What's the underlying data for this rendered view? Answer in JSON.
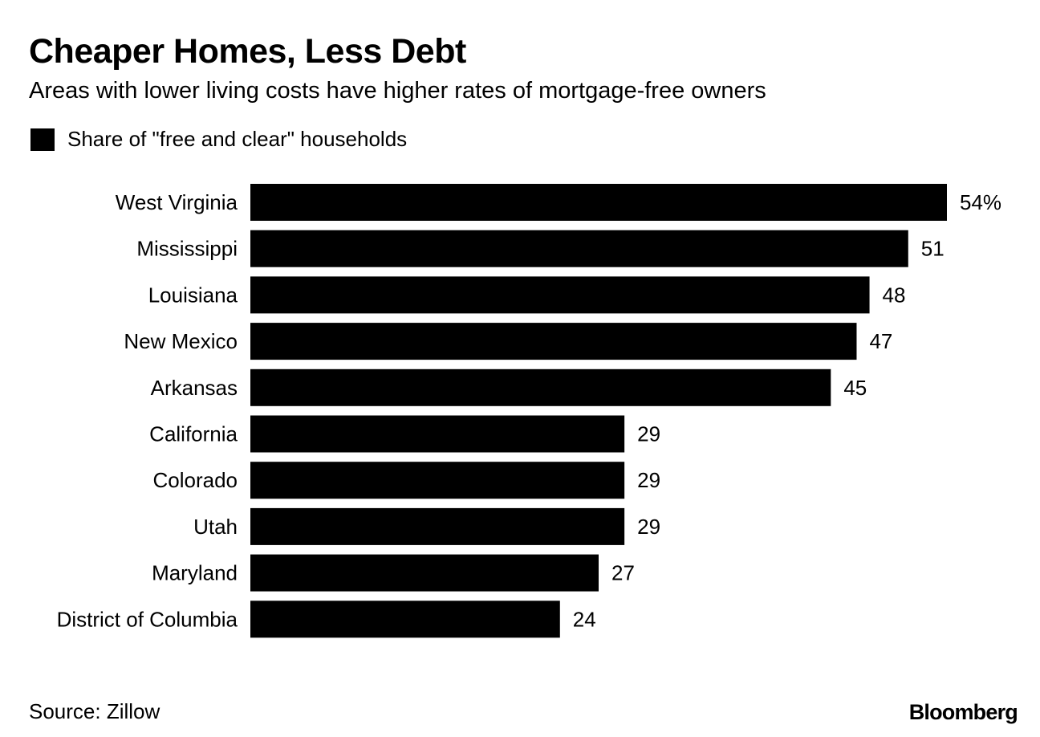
{
  "header": {
    "title": "Cheaper Homes, Less Debt",
    "subtitle": "Areas with lower living costs have higher rates of mortgage-free owners"
  },
  "legend": {
    "label": "Share of \"free and clear\" households"
  },
  "footer": {
    "source": "Source: Zillow",
    "brand": "Bloomberg"
  },
  "chart_data": {
    "type": "bar",
    "orientation": "horizontal",
    "categories": [
      "West Virginia",
      "Mississippi",
      "Louisiana",
      "New Mexico",
      "Arkansas",
      "California",
      "Colorado",
      "Utah",
      "Maryland",
      "District of Columbia"
    ],
    "series": [
      {
        "name": "Share of \"free and clear\" households",
        "values": [
          54,
          51,
          48,
          47,
          45,
          29,
          29,
          29,
          27,
          24
        ],
        "labels": [
          "54%",
          "51",
          "48",
          "47",
          "45",
          "29",
          "29",
          "29",
          "27",
          "24"
        ],
        "color": "#000000"
      }
    ],
    "title": "Cheaper Homes, Less Debt",
    "xlabel": "",
    "ylabel": "",
    "xlim": [
      0,
      54
    ],
    "unit": "%",
    "grid": false,
    "legend_position": "top-left"
  }
}
